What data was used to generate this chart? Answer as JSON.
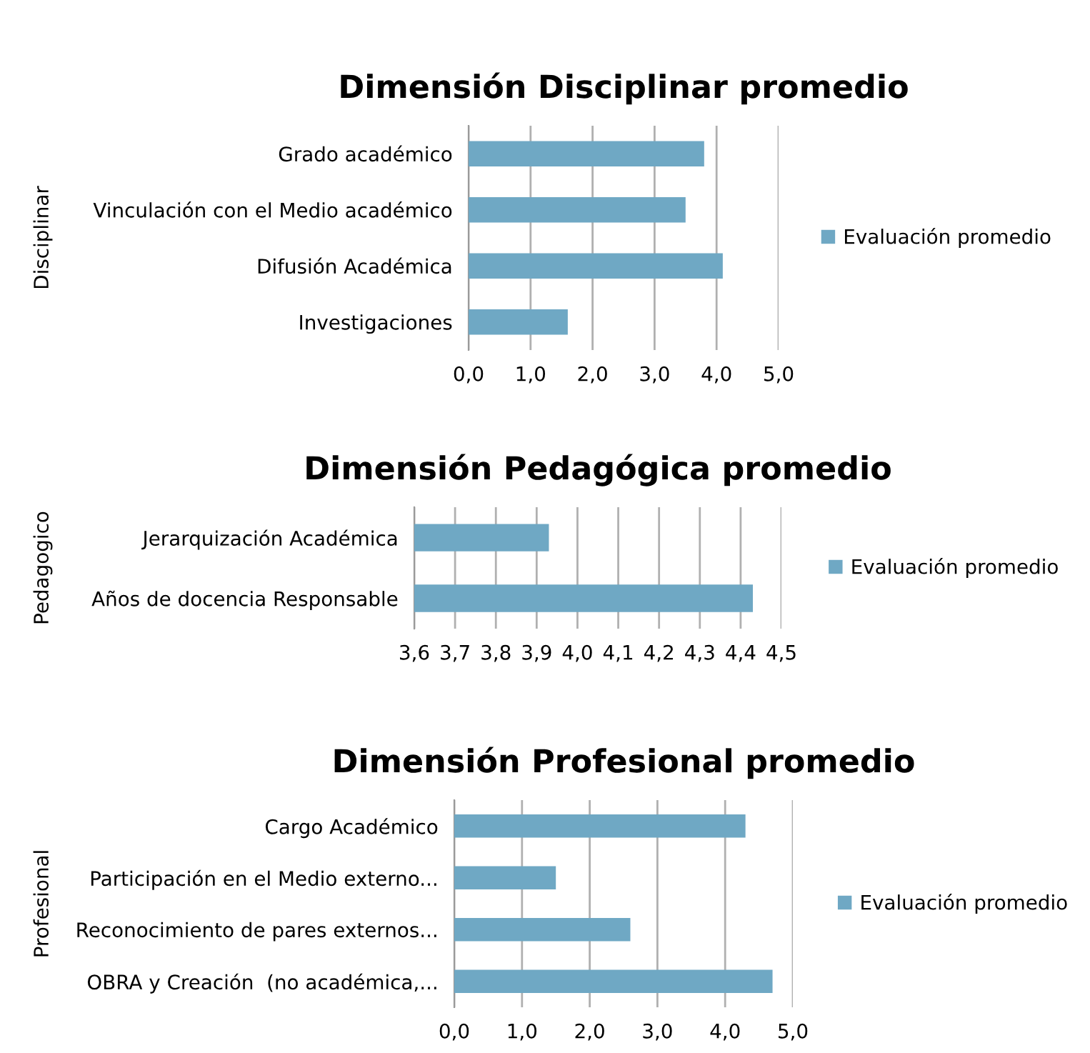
{
  "chart_data": [
    {
      "type": "bar",
      "orientation": "horizontal",
      "title": "Dimensión Disciplinar promedio",
      "ylabel": "Disciplinar",
      "categories": [
        "Grado académico",
        "Vinculación con el Medio académico",
        "Difusión Académica",
        "Investigaciones"
      ],
      "series": [
        {
          "name": "Evaluación promedio",
          "color": "#6fa8c4",
          "values": [
            3.8,
            3.5,
            4.1,
            1.6
          ]
        }
      ],
      "xlim": [
        0,
        5
      ],
      "xticks": [
        {
          "value": 0,
          "label": "0,0"
        },
        {
          "value": 1,
          "label": "1,0"
        },
        {
          "value": 2,
          "label": "2,0"
        },
        {
          "value": 3,
          "label": "3,0"
        },
        {
          "value": 4,
          "label": "4,0"
        },
        {
          "value": 5,
          "label": "5,0"
        }
      ],
      "grid": "x",
      "legend": "right"
    },
    {
      "type": "bar",
      "orientation": "horizontal",
      "title": "Dimensión Pedagógica promedio",
      "ylabel": "Pedagogico",
      "categories": [
        "Jerarquización Académica",
        "Años de docencia Responsable"
      ],
      "series": [
        {
          "name": "Evaluación promedio",
          "color": "#6fa8c4",
          "values": [
            3.93,
            4.43
          ]
        }
      ],
      "xlim": [
        3.6,
        4.5
      ],
      "xticks": [
        {
          "value": 3.6,
          "label": "3,6"
        },
        {
          "value": 3.7,
          "label": "3,7"
        },
        {
          "value": 3.8,
          "label": "3,8"
        },
        {
          "value": 3.9,
          "label": "3,9"
        },
        {
          "value": 4.0,
          "label": "4,0"
        },
        {
          "value": 4.1,
          "label": "4,1"
        },
        {
          "value": 4.2,
          "label": "4,2"
        },
        {
          "value": 4.3,
          "label": "4,3"
        },
        {
          "value": 4.4,
          "label": "4,4"
        },
        {
          "value": 4.5,
          "label": "4,5"
        }
      ],
      "grid": "x",
      "legend": "right"
    },
    {
      "type": "bar",
      "orientation": "horizontal",
      "title": "Dimensión Profesional promedio",
      "ylabel": "Profesional",
      "categories": [
        "Cargo Académico",
        "Participación en el Medio externo...",
        "Reconocimiento de pares externos...",
        "OBRA y Creación  (no académica,..."
      ],
      "series": [
        {
          "name": "Evaluación promedio",
          "color": "#6fa8c4",
          "values": [
            4.3,
            1.5,
            2.6,
            4.7
          ]
        }
      ],
      "xlim": [
        0,
        5
      ],
      "xticks": [
        {
          "value": 0,
          "label": "0,0"
        },
        {
          "value": 1,
          "label": "1,0"
        },
        {
          "value": 2,
          "label": "2,0"
        },
        {
          "value": 3,
          "label": "3,0"
        },
        {
          "value": 4,
          "label": "4,0"
        },
        {
          "value": 5,
          "label": "5,0"
        }
      ],
      "grid": "x",
      "legend": "right"
    }
  ]
}
